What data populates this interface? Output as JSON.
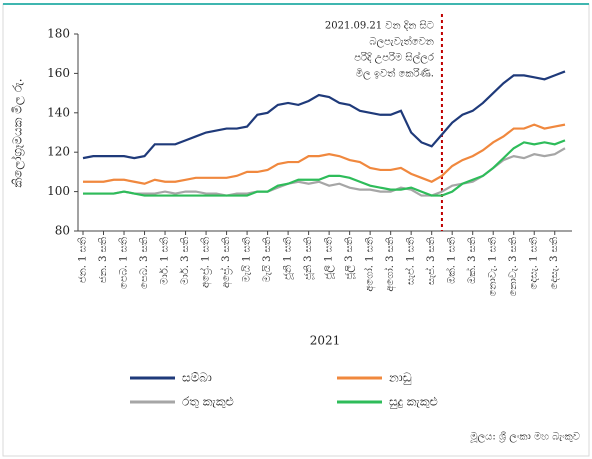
{
  "chart_data": {
    "type": "line",
    "y_label": "කිලෝග්‍රෑමයක මිල රු.",
    "x_label": "2021",
    "categories": [
      "ජන. 1 සති",
      null,
      "ජන. 3 සති",
      null,
      "පෙබ. 1 සති",
      null,
      "පෙබ. 3 සති",
      null,
      "මාර්. 1 සති",
      null,
      "මාර්. 3 සති",
      null,
      "අප්‍රේ. 1 සති",
      null,
      "අප්‍රේ. 3 සති",
      null,
      "මැයි 1 සති",
      null,
      "මැයි 3 සති",
      null,
      "ජූනි 1 සති",
      null,
      "ජූනි 3 සති",
      null,
      "ජූලි 1 සති",
      null,
      "ජූලි 3 සති",
      null,
      "අගෝ. 1 සති",
      null,
      "අගෝ. 3 සති",
      null,
      "සැප්. 1 සති",
      null,
      "සැප්. 3 සති",
      null,
      "ඔක්. 1 සති",
      null,
      "ඔක්. 3 සති",
      null,
      "නොවැ. 1 සති",
      null,
      "නොවැ. 3 සති",
      null,
      "දෙසැ. 1 සති",
      null,
      "දෙසැ. 3 සති",
      null
    ],
    "series": [
      {
        "name": "සම්බා",
        "color": "#1f3a7a",
        "values": [
          117,
          118,
          118,
          118,
          118,
          117,
          118,
          124,
          124,
          124,
          126,
          128,
          130,
          131,
          132,
          132,
          133,
          139,
          140,
          144,
          145,
          144,
          146,
          149,
          148,
          145,
          144,
          141,
          140,
          139,
          139,
          141,
          130,
          125,
          123,
          129,
          135,
          139,
          141,
          145,
          150,
          155,
          159,
          159,
          158,
          157,
          159,
          161
        ]
      },
      {
        "name": "නාඩු",
        "color": "#f0883e",
        "values": [
          105,
          105,
          105,
          106,
          106,
          105,
          104,
          106,
          105,
          105,
          106,
          107,
          107,
          107,
          107,
          108,
          110,
          110,
          111,
          114,
          115,
          115,
          118,
          118,
          119,
          118,
          116,
          115,
          112,
          111,
          111,
          112,
          109,
          107,
          105,
          108,
          113,
          116,
          118,
          121,
          125,
          128,
          132,
          132,
          134,
          132,
          133,
          134
        ]
      },
      {
        "name": "රතු කැකුළු",
        "color": "#a6a6a6",
        "values": [
          99,
          99,
          99,
          99,
          100,
          99,
          99,
          99,
          100,
          99,
          100,
          100,
          99,
          99,
          98,
          99,
          99,
          100,
          100,
          102,
          104,
          105,
          104,
          105,
          103,
          104,
          102,
          101,
          101,
          100,
          100,
          102,
          101,
          98,
          98,
          100,
          103,
          104,
          105,
          108,
          112,
          116,
          118,
          117,
          119,
          118,
          119,
          122
        ]
      },
      {
        "name": "සුදු කැකුළු",
        "color": "#2ebc5a",
        "values": [
          99,
          99,
          99,
          99,
          100,
          99,
          98,
          98,
          98,
          98,
          98,
          98,
          98,
          98,
          98,
          98,
          98,
          100,
          100,
          103,
          104,
          106,
          106,
          106,
          108,
          108,
          107,
          105,
          103,
          102,
          101,
          101,
          102,
          100,
          98,
          98,
          100,
          104,
          106,
          108,
          112,
          117,
          122,
          125,
          124,
          125,
          124,
          126
        ]
      }
    ],
    "ylim": [
      80,
      180
    ],
    "yticks": [
      80,
      100,
      120,
      140,
      160,
      180
    ],
    "annotation": {
      "x": 35,
      "lines": [
        "2021.09.21 වන දින සිට",
        "බලපැවැත්වෙන",
        "පරිදි උපරිම සිල්ලර",
        "මිල ඉවත් කෙරිණි."
      ]
    },
    "source": "මූලය: ශ්‍රී ලංකා මහ බැංකුව"
  }
}
